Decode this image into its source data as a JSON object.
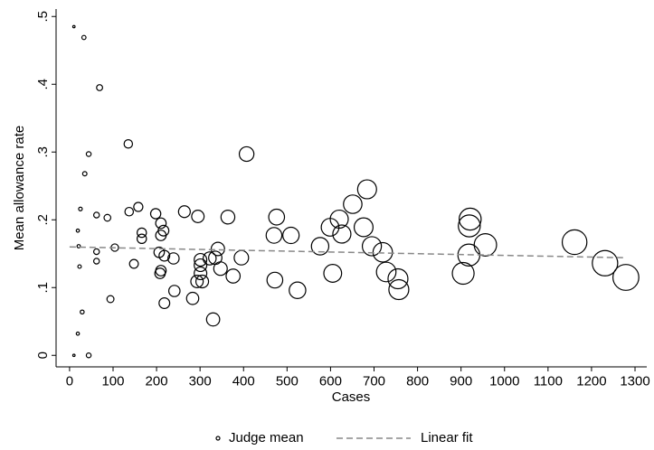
{
  "chart_data": {
    "type": "scatter",
    "x_label": "Cases",
    "y_label": "Mean allowance rate",
    "xlim": [
      -31,
      1327
    ],
    "ylim": [
      -0.017,
      0.511
    ],
    "xticks": [
      0,
      100,
      200,
      300,
      400,
      500,
      600,
      700,
      800,
      900,
      1000,
      1100,
      1200,
      1300
    ],
    "yticks": [
      0,
      {
        "value": 0.1,
        "label": ".1"
      },
      {
        "value": 0.2,
        "label": ".2"
      },
      {
        "value": 0.3,
        "label": ".3"
      },
      {
        "value": 0.4,
        "label": ".4"
      },
      {
        "value": 0.5,
        "label": ".5"
      }
    ],
    "series": [
      {
        "name": "Judge mean",
        "color": "#000000",
        "marker": "hollow-circle",
        "x": [
          10,
          33,
          69,
          44,
          135,
          35,
          25,
          62,
          87,
          19,
          137,
          158,
          198,
          264,
          295,
          210,
          216,
          210,
          166,
          166,
          21,
          62,
          62,
          23,
          104,
          148,
          206,
          218,
          239,
          210,
          208,
          301,
          301,
          301,
          322,
          335,
          341,
          347,
          376,
          395,
          364,
          407,
          470,
          476,
          509,
          472,
          524,
          576,
          599,
          620,
          626,
          651,
          684,
          676,
          695,
          720,
          728,
          605,
          241,
          283,
          218,
          293,
          305,
          94,
          330,
          29,
          19,
          10,
          44,
          755,
          757,
          905,
          918,
          919,
          921,
          956,
          1161,
          1231,
          1279
        ],
        "values": [
          0.485,
          0.469,
          0.395,
          0.297,
          0.312,
          0.268,
          0.216,
          0.207,
          0.203,
          0.184,
          0.212,
          0.219,
          0.209,
          0.212,
          0.205,
          0.195,
          0.184,
          0.177,
          0.181,
          0.172,
          0.161,
          0.153,
          0.139,
          0.131,
          0.159,
          0.135,
          0.152,
          0.147,
          0.143,
          0.125,
          0.121,
          0.121,
          0.133,
          0.141,
          0.143,
          0.144,
          0.157,
          0.128,
          0.117,
          0.144,
          0.204,
          0.297,
          0.177,
          0.204,
          0.177,
          0.111,
          0.096,
          0.161,
          0.189,
          0.201,
          0.179,
          0.223,
          0.245,
          0.189,
          0.161,
          0.152,
          0.123,
          0.121,
          0.095,
          0.084,
          0.077,
          0.109,
          0.109,
          0.083,
          0.053,
          0.064,
          0.032,
          0,
          0,
          0.113,
          0.097,
          0.121,
          0.148,
          0.191,
          0.201,
          0.163,
          0.167,
          0.136,
          0.115
        ]
      },
      {
        "name": "Linear fit",
        "color": "#888888",
        "marker": "dashed-line",
        "x": [
          0,
          1280
        ],
        "values": [
          0.16,
          0.144
        ]
      }
    ]
  }
}
